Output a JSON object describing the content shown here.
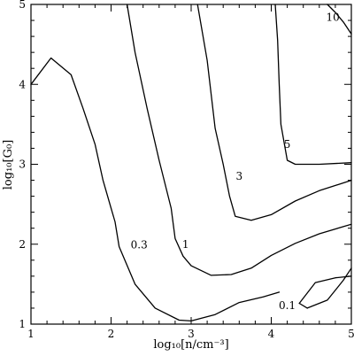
{
  "chart_data": {
    "type": "line",
    "xlabel": "log₁₀[n/cm⁻³]",
    "ylabel": "log₁₀[G₀]",
    "xlim": [
      1,
      5
    ],
    "ylim": [
      1,
      5
    ],
    "xticks": [
      1,
      2,
      3,
      4,
      5
    ],
    "yticks": [
      1,
      2,
      3,
      4,
      5
    ],
    "x_tick_labels": [
      "1",
      "2",
      "3",
      "4",
      "5"
    ],
    "y_tick_labels": [
      "1",
      "2",
      "3",
      "4",
      "5"
    ],
    "minor_tick_step": 0.2,
    "grid": false,
    "series": [
      {
        "name": "0.3",
        "x": [
          1.0,
          1.25,
          1.5,
          1.65,
          1.8,
          1.9,
          2.0,
          2.05,
          2.1,
          2.3,
          2.55,
          2.85,
          3.0,
          3.3,
          3.6,
          3.9,
          4.1
        ],
        "y": [
          4.0,
          4.33,
          4.12,
          3.7,
          3.25,
          2.8,
          2.45,
          2.28,
          1.97,
          1.5,
          1.2,
          1.05,
          1.04,
          1.12,
          1.27,
          1.34,
          1.4
        ]
      },
      {
        "name": "0.1",
        "x": [
          4.35,
          4.55,
          4.8,
          5.0
        ],
        "y": [
          1.26,
          1.52,
          1.58,
          1.6
        ],
        "x2": [
          4.45,
          4.7,
          4.9,
          5.0
        ],
        "y2": [
          1.2,
          1.3,
          1.55,
          1.7
        ]
      },
      {
        "name": "1",
        "x": [
          2.2,
          2.3,
          2.45,
          2.6,
          2.75,
          2.8,
          2.9,
          3.0,
          3.25,
          3.5,
          3.75,
          4.0,
          4.3,
          4.6,
          5.0
        ],
        "y": [
          5.0,
          4.4,
          3.7,
          3.05,
          2.45,
          2.07,
          1.85,
          1.73,
          1.61,
          1.62,
          1.7,
          1.86,
          2.01,
          2.13,
          2.25
        ]
      },
      {
        "name": "3",
        "x": [
          3.08,
          3.2,
          3.3,
          3.4,
          3.48,
          3.55,
          3.75,
          4.0,
          4.3,
          4.6,
          5.0
        ],
        "y": [
          5.0,
          4.3,
          3.45,
          3.0,
          2.6,
          2.35,
          2.3,
          2.37,
          2.54,
          2.67,
          2.8
        ]
      },
      {
        "name": "5",
        "x": [
          4.05,
          4.08,
          4.1,
          4.12,
          4.2,
          4.3,
          4.6,
          5.0
        ],
        "y": [
          5.0,
          4.55,
          4.0,
          3.5,
          3.05,
          3.0,
          3.0,
          3.02
        ]
      },
      {
        "name": "10",
        "x": [
          4.7,
          4.8,
          4.9,
          5.0
        ],
        "y": [
          5.0,
          4.9,
          4.78,
          4.63
        ]
      }
    ],
    "annotations": [
      {
        "text": "0.3",
        "x": 2.35,
        "y": 1.99
      },
      {
        "text": "0.1",
        "x": 4.2,
        "y": 1.23
      },
      {
        "text": "1",
        "x": 2.93,
        "y": 2.0
      },
      {
        "text": "3",
        "x": 3.6,
        "y": 2.85
      },
      {
        "text": "5",
        "x": 4.2,
        "y": 3.25
      },
      {
        "text": "10",
        "x": 4.77,
        "y": 4.84
      }
    ]
  }
}
